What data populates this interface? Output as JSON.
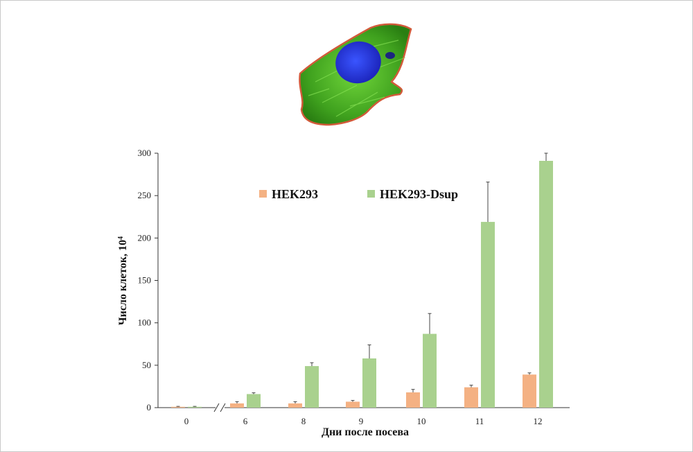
{
  "chart_data": {
    "type": "bar",
    "categories": [
      "0",
      "6",
      "8",
      "9",
      "10",
      "11",
      "12"
    ],
    "series": [
      {
        "name": "HEK293",
        "color": "#f4b183",
        "values": [
          1,
          5,
          5,
          7,
          18,
          24,
          39
        ],
        "errors": [
          0.5,
          2,
          2,
          1.5,
          3.5,
          2.5,
          2
        ]
      },
      {
        "name": "HEK293-Dsup",
        "color": "#a9d18e",
        "values": [
          1,
          16,
          49,
          58,
          87,
          219,
          291
        ],
        "errors": [
          0.5,
          1.5,
          4,
          16,
          24,
          47,
          9
        ]
      }
    ],
    "xlabel": "Дни после посева",
    "ylabel": "Число клеток, 10",
    "ylabel_superscript": "4",
    "ylim": [
      0,
      300
    ],
    "yticks": [
      0,
      50,
      100,
      150,
      200,
      250,
      300
    ],
    "grid": false,
    "axis_break": "between 0 and 6",
    "legend": "top-center"
  },
  "image": {
    "subject": "fluorescent cell micrograph",
    "colors": [
      "#2e7d1a",
      "#1f2fd0",
      "#c0392b"
    ]
  }
}
